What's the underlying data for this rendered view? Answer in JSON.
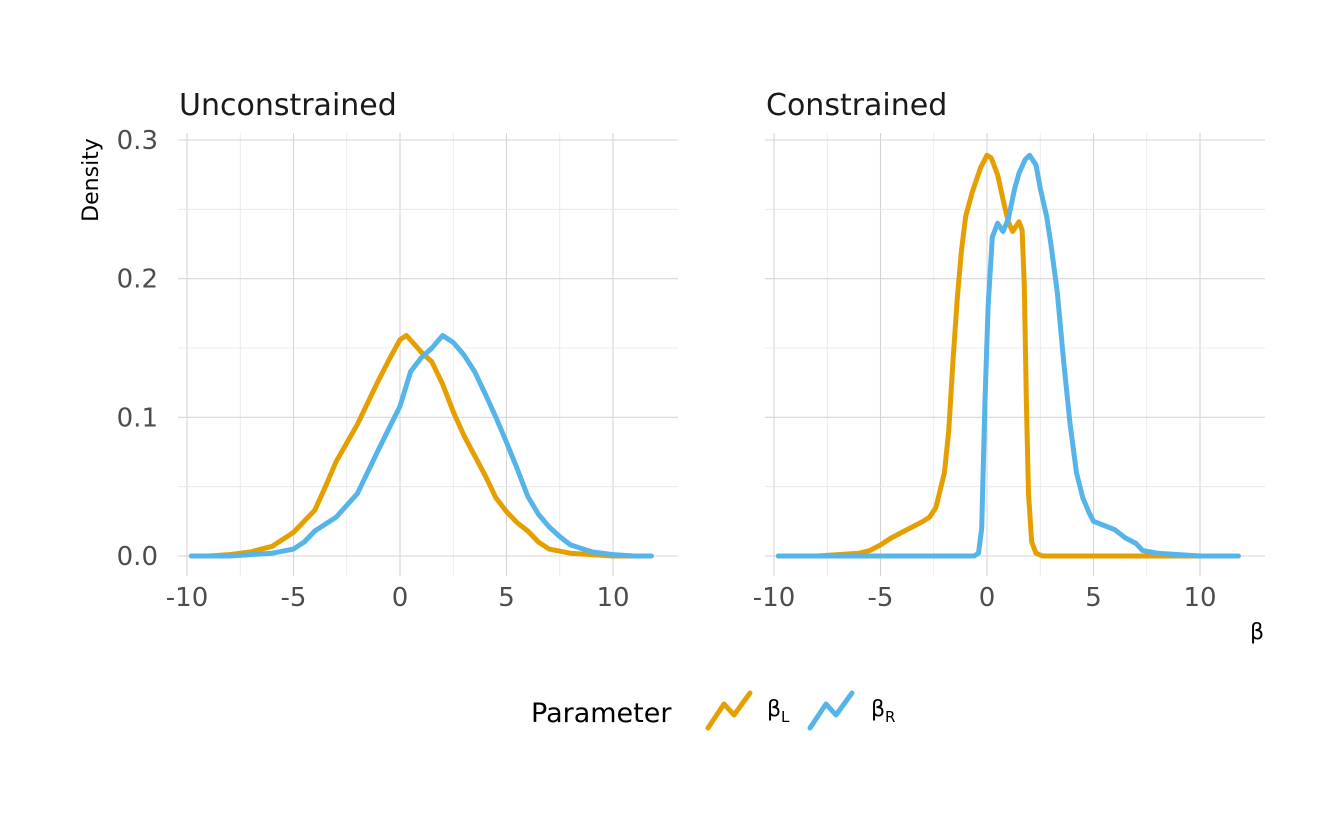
{
  "chart_data": {
    "type": "line",
    "ylabel": "Density",
    "xlabel": "β",
    "xlim": [
      -10.5,
      12.5
    ],
    "ylim": [
      -0.012,
      0.3
    ],
    "x_ticks": [
      -10,
      -5,
      0,
      5,
      10
    ],
    "x_tick_labels": [
      "-10",
      "-5",
      "0",
      "5",
      "10"
    ],
    "y_ticks": [
      0.0,
      0.1,
      0.2,
      0.3
    ],
    "y_tick_labels": [
      "0.0",
      "0.1",
      "0.2",
      "0.3"
    ],
    "grid": true,
    "legend": {
      "title": "Parameter",
      "placement": "bottom",
      "entries": [
        {
          "base": "β",
          "sub": "L",
          "color": "#E69F00"
        },
        {
          "base": "β",
          "sub": "R",
          "color": "#56B4E9"
        }
      ]
    },
    "panels": [
      {
        "title": "Unconstrained",
        "series": [
          {
            "name": "βL",
            "color": "#E69F00",
            "points": [
              [
                -9.8,
                0
              ],
              [
                -9,
                0
              ],
              [
                -8,
                0.001
              ],
              [
                -7,
                0.003
              ],
              [
                -6,
                0.007
              ],
              [
                -5,
                0.017
              ],
              [
                -4,
                0.033
              ],
              [
                -3.5,
                0.05
              ],
              [
                -3,
                0.068
              ],
              [
                -2,
                0.095
              ],
              [
                -1,
                0.127
              ],
              [
                -0.5,
                0.142
              ],
              [
                0,
                0.156
              ],
              [
                0.3,
                0.159
              ],
              [
                0.6,
                0.154
              ],
              [
                1,
                0.147
              ],
              [
                1.5,
                0.14
              ],
              [
                2,
                0.124
              ],
              [
                2.5,
                0.104
              ],
              [
                3,
                0.087
              ],
              [
                4,
                0.058
              ],
              [
                4.5,
                0.042
              ],
              [
                5,
                0.032
              ],
              [
                5.5,
                0.024
              ],
              [
                6,
                0.018
              ],
              [
                6.5,
                0.01
              ],
              [
                7,
                0.005
              ],
              [
                8,
                0.002
              ],
              [
                9,
                0.001
              ],
              [
                10,
                0
              ],
              [
                11,
                0
              ],
              [
                11.8,
                0
              ]
            ]
          },
          {
            "name": "βR",
            "color": "#56B4E9",
            "points": [
              [
                -9.8,
                0
              ],
              [
                -9,
                0
              ],
              [
                -8,
                0
              ],
              [
                -7,
                0.001
              ],
              [
                -6,
                0.002
              ],
              [
                -5,
                0.005
              ],
              [
                -4.5,
                0.01
              ],
              [
                -4,
                0.018
              ],
              [
                -3,
                0.028
              ],
              [
                -2,
                0.045
              ],
              [
                -1,
                0.077
              ],
              [
                0,
                0.108
              ],
              [
                0.5,
                0.133
              ],
              [
                1,
                0.143
              ],
              [
                1.5,
                0.15
              ],
              [
                2,
                0.159
              ],
              [
                2.5,
                0.154
              ],
              [
                3,
                0.145
              ],
              [
                3.5,
                0.133
              ],
              [
                4,
                0.117
              ],
              [
                4.5,
                0.1
              ],
              [
                5,
                0.082
              ],
              [
                5.5,
                0.063
              ],
              [
                6,
                0.043
              ],
              [
                6.5,
                0.03
              ],
              [
                7,
                0.021
              ],
              [
                7.5,
                0.014
              ],
              [
                8,
                0.008
              ],
              [
                9,
                0.003
              ],
              [
                10,
                0.001
              ],
              [
                11,
                0
              ],
              [
                11.8,
                0
              ]
            ]
          }
        ]
      },
      {
        "title": "Constrained",
        "series": [
          {
            "name": "βL",
            "color": "#E69F00",
            "points": [
              [
                -9.8,
                0
              ],
              [
                -8,
                0
              ],
              [
                -7,
                0.001
              ],
              [
                -6,
                0.002
              ],
              [
                -5.5,
                0.004
              ],
              [
                -5,
                0.008
              ],
              [
                -4.5,
                0.013
              ],
              [
                -4,
                0.017
              ],
              [
                -3.5,
                0.021
              ],
              [
                -3,
                0.025
              ],
              [
                -2.7,
                0.028
              ],
              [
                -2.4,
                0.035
              ],
              [
                -2,
                0.06
              ],
              [
                -1.8,
                0.09
              ],
              [
                -1.6,
                0.14
              ],
              [
                -1.4,
                0.185
              ],
              [
                -1.2,
                0.22
              ],
              [
                -1,
                0.245
              ],
              [
                -0.7,
                0.262
              ],
              [
                -0.3,
                0.28
              ],
              [
                0,
                0.289
              ],
              [
                0.2,
                0.287
              ],
              [
                0.5,
                0.275
              ],
              [
                0.8,
                0.254
              ],
              [
                1,
                0.241
              ],
              [
                1.2,
                0.234
              ],
              [
                1.5,
                0.241
              ],
              [
                1.65,
                0.235
              ],
              [
                1.75,
                0.195
              ],
              [
                1.85,
                0.11
              ],
              [
                1.95,
                0.045
              ],
              [
                2.1,
                0.01
              ],
              [
                2.3,
                0.002
              ],
              [
                2.6,
                0
              ],
              [
                3,
                0
              ],
              [
                5,
                0
              ],
              [
                8,
                0
              ],
              [
                11.8,
                0
              ]
            ]
          },
          {
            "name": "βR",
            "color": "#56B4E9",
            "points": [
              [
                -9.8,
                0
              ],
              [
                -6,
                0
              ],
              [
                -3,
                0
              ],
              [
                -0.6,
                0
              ],
              [
                -0.4,
                0.002
              ],
              [
                -0.25,
                0.02
              ],
              [
                -0.1,
                0.11
              ],
              [
                0.05,
                0.18
              ],
              [
                0.25,
                0.23
              ],
              [
                0.5,
                0.24
              ],
              [
                0.75,
                0.234
              ],
              [
                1,
                0.243
              ],
              [
                1.3,
                0.265
              ],
              [
                1.5,
                0.276
              ],
              [
                1.8,
                0.286
              ],
              [
                2,
                0.289
              ],
              [
                2.3,
                0.282
              ],
              [
                2.5,
                0.265
              ],
              [
                2.8,
                0.245
              ],
              [
                3,
                0.225
              ],
              [
                3.3,
                0.19
              ],
              [
                3.6,
                0.14
              ],
              [
                3.9,
                0.095
              ],
              [
                4.2,
                0.06
              ],
              [
                4.5,
                0.042
              ],
              [
                4.8,
                0.031
              ],
              [
                5,
                0.025
              ],
              [
                5.5,
                0.022
              ],
              [
                6,
                0.019
              ],
              [
                6.5,
                0.013
              ],
              [
                7,
                0.009
              ],
              [
                7.3,
                0.004
              ],
              [
                8,
                0.002
              ],
              [
                9,
                0.001
              ],
              [
                10,
                0
              ],
              [
                11.8,
                0
              ]
            ]
          }
        ]
      }
    ]
  }
}
